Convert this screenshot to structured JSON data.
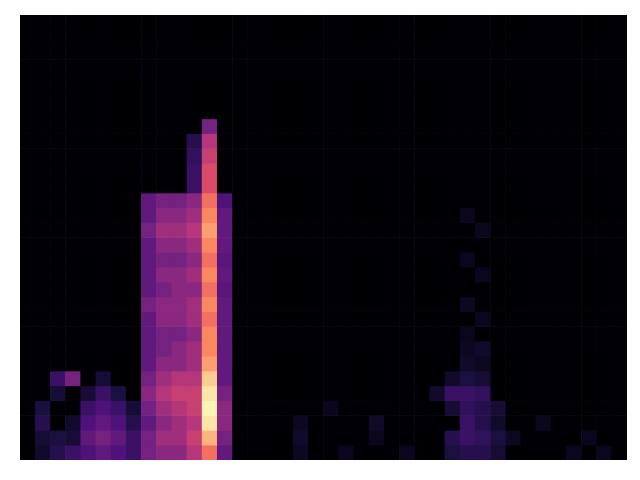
{
  "chart_data": {
    "type": "heatmap",
    "tick_labels": false,
    "grid": false,
    "xlim": [
      0,
      40
    ],
    "ylim": [
      0,
      30
    ],
    "cells": [
      [
        0,
        0.08,
        0.15,
        0.2,
        0.25,
        0.3,
        0.25,
        0.2,
        0.35,
        0.4,
        0.4,
        0.5,
        0.7,
        0.3,
        0,
        0,
        0,
        0,
        0.06,
        0,
        0,
        0.05,
        0,
        0,
        0,
        0.05,
        0,
        0,
        0.12,
        0.15,
        0.15,
        0.1,
        0,
        0,
        0,
        0,
        0.05,
        0,
        0.05,
        0
      ],
      [
        0,
        0.1,
        0.12,
        0.1,
        0.3,
        0.35,
        0.3,
        0.2,
        0.35,
        0.45,
        0.45,
        0.55,
        0.85,
        0.35,
        0,
        0,
        0,
        0,
        0.08,
        0,
        0,
        0,
        0,
        0.05,
        0,
        0,
        0,
        0,
        0.15,
        0.2,
        0.18,
        0.12,
        0.06,
        0,
        0,
        0,
        0,
        0.05,
        0,
        0
      ],
      [
        0,
        0.15,
        0,
        0.08,
        0.25,
        0.3,
        0.25,
        0.15,
        0.3,
        0.4,
        0.45,
        0.5,
        0.95,
        0.4,
        0,
        0,
        0,
        0,
        0.06,
        0,
        0,
        0,
        0,
        0.08,
        0,
        0,
        0,
        0,
        0,
        0.2,
        0.15,
        0.08,
        0,
        0,
        0.05,
        0,
        0,
        0,
        0,
        0
      ],
      [
        0,
        0.12,
        0,
        0,
        0.2,
        0.25,
        0.2,
        0.1,
        0.35,
        0.45,
        0.5,
        0.55,
        0.98,
        0.4,
        0,
        0,
        0,
        0,
        0,
        0,
        0.05,
        0,
        0,
        0,
        0,
        0,
        0,
        0,
        0.1,
        0.18,
        0.15,
        0.1,
        0,
        0,
        0,
        0,
        0,
        0,
        0,
        0
      ],
      [
        0,
        0,
        0.1,
        0,
        0.1,
        0.2,
        0.12,
        0,
        0.4,
        0.5,
        0.55,
        0.55,
        0.95,
        0.35,
        0,
        0,
        0,
        0,
        0,
        0,
        0,
        0,
        0,
        0,
        0,
        0,
        0,
        0.08,
        0.2,
        0.2,
        0.18,
        0,
        0,
        0,
        0,
        0,
        0,
        0,
        0,
        0
      ],
      [
        0,
        0,
        0.2,
        0.35,
        0,
        0.1,
        0,
        0,
        0.35,
        0.45,
        0.5,
        0.5,
        0.9,
        0.3,
        0,
        0,
        0,
        0,
        0,
        0,
        0,
        0,
        0,
        0,
        0,
        0,
        0,
        0,
        0.08,
        0.12,
        0.1,
        0,
        0,
        0,
        0,
        0,
        0,
        0,
        0,
        0
      ],
      [
        0,
        0,
        0,
        0,
        0,
        0,
        0,
        0,
        0.3,
        0.4,
        0.4,
        0.45,
        0.8,
        0.3,
        0,
        0,
        0,
        0,
        0,
        0,
        0,
        0,
        0,
        0,
        0,
        0,
        0,
        0,
        0,
        0.08,
        0.06,
        0,
        0,
        0,
        0,
        0,
        0,
        0,
        0,
        0
      ],
      [
        0,
        0,
        0,
        0,
        0,
        0,
        0,
        0,
        0.3,
        0.35,
        0.4,
        0.45,
        0.75,
        0.3,
        0,
        0,
        0,
        0,
        0,
        0,
        0,
        0,
        0,
        0,
        0,
        0,
        0,
        0,
        0,
        0.06,
        0.08,
        0,
        0,
        0,
        0,
        0,
        0,
        0,
        0,
        0
      ],
      [
        0,
        0,
        0,
        0,
        0,
        0,
        0,
        0,
        0.3,
        0.35,
        0.35,
        0.4,
        0.75,
        0.3,
        0,
        0,
        0,
        0,
        0,
        0,
        0,
        0,
        0,
        0,
        0,
        0,
        0,
        0,
        0,
        0.05,
        0,
        0,
        0,
        0,
        0,
        0,
        0,
        0,
        0,
        0
      ],
      [
        0,
        0,
        0,
        0,
        0,
        0,
        0,
        0,
        0.3,
        0.4,
        0.4,
        0.45,
        0.7,
        0.3,
        0,
        0,
        0,
        0,
        0,
        0,
        0,
        0,
        0,
        0,
        0,
        0,
        0,
        0,
        0,
        0,
        0.05,
        0,
        0,
        0,
        0,
        0,
        0,
        0,
        0,
        0
      ],
      [
        0,
        0,
        0,
        0,
        0,
        0,
        0,
        0,
        0.35,
        0.4,
        0.4,
        0.45,
        0.75,
        0.3,
        0,
        0,
        0,
        0,
        0,
        0,
        0,
        0,
        0,
        0,
        0,
        0,
        0,
        0,
        0,
        0.06,
        0,
        0,
        0,
        0,
        0,
        0,
        0,
        0,
        0,
        0
      ],
      [
        0,
        0,
        0,
        0,
        0,
        0,
        0,
        0,
        0.3,
        0.35,
        0.4,
        0.4,
        0.7,
        0.28,
        0,
        0,
        0,
        0,
        0,
        0,
        0,
        0,
        0,
        0,
        0,
        0,
        0,
        0,
        0,
        0,
        0,
        0,
        0,
        0,
        0,
        0,
        0,
        0,
        0,
        0
      ],
      [
        0,
        0,
        0,
        0,
        0,
        0,
        0,
        0,
        0.3,
        0.4,
        0.4,
        0.45,
        0.75,
        0.3,
        0,
        0,
        0,
        0,
        0,
        0,
        0,
        0,
        0,
        0,
        0,
        0,
        0,
        0,
        0,
        0,
        0.05,
        0,
        0,
        0,
        0,
        0,
        0,
        0,
        0,
        0
      ],
      [
        0,
        0,
        0,
        0,
        0,
        0,
        0,
        0,
        0.3,
        0.35,
        0.35,
        0.4,
        0.7,
        0.28,
        0,
        0,
        0,
        0,
        0,
        0,
        0,
        0,
        0,
        0,
        0,
        0,
        0,
        0,
        0,
        0.05,
        0,
        0,
        0,
        0,
        0,
        0,
        0,
        0,
        0,
        0
      ],
      [
        0,
        0,
        0,
        0,
        0,
        0,
        0,
        0,
        0.3,
        0.4,
        0.4,
        0.45,
        0.75,
        0.3,
        0,
        0,
        0,
        0,
        0,
        0,
        0,
        0,
        0,
        0,
        0,
        0,
        0,
        0,
        0,
        0,
        0,
        0,
        0,
        0,
        0,
        0,
        0,
        0,
        0,
        0
      ],
      [
        0,
        0,
        0,
        0,
        0,
        0,
        0,
        0,
        0.35,
        0.45,
        0.45,
        0.5,
        0.8,
        0.3,
        0,
        0,
        0,
        0,
        0,
        0,
        0,
        0,
        0,
        0,
        0,
        0,
        0,
        0,
        0,
        0,
        0.05,
        0,
        0,
        0,
        0,
        0,
        0,
        0,
        0,
        0
      ],
      [
        0,
        0,
        0,
        0,
        0,
        0,
        0,
        0,
        0.3,
        0.4,
        0.4,
        0.45,
        0.75,
        0.3,
        0,
        0,
        0,
        0,
        0,
        0,
        0,
        0,
        0,
        0,
        0,
        0,
        0,
        0,
        0,
        0.05,
        0,
        0,
        0,
        0,
        0,
        0,
        0,
        0,
        0,
        0
      ],
      [
        0,
        0,
        0,
        0,
        0,
        0,
        0,
        0,
        0.3,
        0.35,
        0.35,
        0.4,
        0.7,
        0.25,
        0,
        0,
        0,
        0,
        0,
        0,
        0,
        0,
        0,
        0,
        0,
        0,
        0,
        0,
        0,
        0,
        0,
        0,
        0,
        0,
        0,
        0,
        0,
        0,
        0,
        0
      ],
      [
        0,
        0,
        0,
        0,
        0,
        0,
        0,
        0,
        0,
        0,
        0,
        0.2,
        0.6,
        0,
        0,
        0,
        0,
        0,
        0,
        0,
        0,
        0,
        0,
        0,
        0,
        0,
        0,
        0,
        0,
        0,
        0,
        0,
        0,
        0,
        0,
        0,
        0,
        0,
        0,
        0
      ],
      [
        0,
        0,
        0,
        0,
        0,
        0,
        0,
        0,
        0,
        0,
        0,
        0.2,
        0.6,
        0,
        0,
        0,
        0,
        0,
        0,
        0,
        0,
        0,
        0,
        0,
        0,
        0,
        0,
        0,
        0,
        0,
        0,
        0,
        0,
        0,
        0,
        0,
        0,
        0,
        0,
        0
      ],
      [
        0,
        0,
        0,
        0,
        0,
        0,
        0,
        0,
        0,
        0,
        0,
        0.18,
        0.55,
        0,
        0,
        0,
        0,
        0,
        0,
        0,
        0,
        0,
        0,
        0,
        0,
        0,
        0,
        0,
        0,
        0,
        0,
        0,
        0,
        0,
        0,
        0,
        0,
        0,
        0,
        0
      ],
      [
        0,
        0,
        0,
        0,
        0,
        0,
        0,
        0,
        0,
        0,
        0,
        0.15,
        0.5,
        0,
        0,
        0,
        0,
        0,
        0,
        0,
        0,
        0,
        0,
        0,
        0,
        0,
        0,
        0,
        0,
        0,
        0,
        0,
        0,
        0,
        0,
        0,
        0,
        0,
        0,
        0
      ],
      [
        0,
        0,
        0,
        0,
        0,
        0,
        0,
        0,
        0,
        0,
        0,
        0,
        0.35,
        0,
        0,
        0,
        0,
        0,
        0,
        0,
        0,
        0,
        0,
        0,
        0,
        0,
        0,
        0,
        0,
        0,
        0,
        0,
        0,
        0,
        0,
        0,
        0,
        0,
        0,
        0
      ],
      [
        0,
        0,
        0,
        0,
        0,
        0,
        0,
        0,
        0,
        0,
        0,
        0,
        0,
        0,
        0,
        0,
        0,
        0,
        0,
        0,
        0,
        0,
        0,
        0,
        0,
        0,
        0,
        0,
        0,
        0,
        0,
        0,
        0,
        0,
        0,
        0,
        0,
        0,
        0,
        0
      ],
      [
        0,
        0,
        0,
        0,
        0,
        0,
        0,
        0,
        0,
        0,
        0,
        0,
        0,
        0,
        0,
        0,
        0,
        0,
        0,
        0,
        0,
        0,
        0,
        0,
        0,
        0,
        0,
        0,
        0,
        0,
        0,
        0,
        0,
        0,
        0,
        0,
        0,
        0,
        0,
        0
      ],
      [
        0,
        0,
        0,
        0,
        0,
        0,
        0,
        0,
        0,
        0,
        0,
        0,
        0,
        0,
        0,
        0,
        0,
        0,
        0,
        0,
        0,
        0,
        0,
        0,
        0,
        0,
        0,
        0,
        0,
        0,
        0,
        0,
        0,
        0,
        0,
        0,
        0,
        0,
        0,
        0
      ],
      [
        0,
        0,
        0,
        0,
        0,
        0,
        0,
        0,
        0,
        0,
        0,
        0,
        0,
        0,
        0,
        0,
        0,
        0,
        0,
        0,
        0,
        0,
        0,
        0,
        0,
        0,
        0,
        0,
        0,
        0,
        0,
        0,
        0,
        0,
        0,
        0,
        0,
        0,
        0,
        0
      ],
      [
        0,
        0,
        0,
        0,
        0,
        0,
        0,
        0,
        0,
        0,
        0,
        0,
        0,
        0,
        0,
        0,
        0,
        0,
        0,
        0,
        0,
        0,
        0,
        0,
        0,
        0,
        0,
        0,
        0,
        0,
        0,
        0,
        0,
        0,
        0,
        0,
        0,
        0,
        0,
        0
      ],
      [
        0,
        0,
        0,
        0,
        0,
        0,
        0,
        0,
        0,
        0,
        0,
        0,
        0,
        0,
        0,
        0,
        0,
        0,
        0,
        0,
        0,
        0,
        0,
        0,
        0,
        0,
        0,
        0,
        0,
        0,
        0,
        0,
        0,
        0,
        0,
        0,
        0,
        0,
        0,
        0
      ],
      [
        0,
        0,
        0,
        0,
        0,
        0,
        0,
        0,
        0,
        0,
        0,
        0,
        0,
        0,
        0,
        0,
        0,
        0,
        0,
        0,
        0,
        0,
        0,
        0,
        0,
        0,
        0,
        0,
        0,
        0,
        0,
        0,
        0,
        0,
        0,
        0,
        0,
        0,
        0,
        0
      ]
    ]
  }
}
